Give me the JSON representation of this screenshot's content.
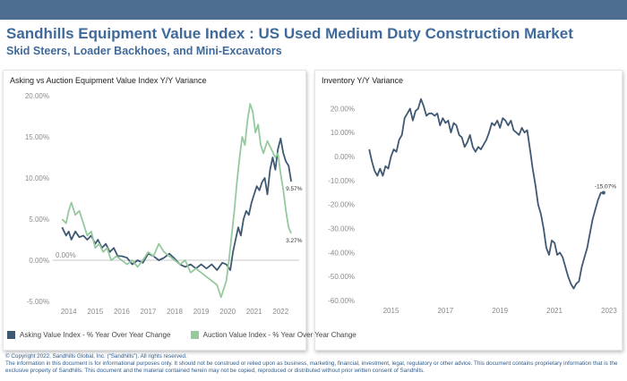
{
  "header": {
    "title": "Sandhills Equipment Value Index : US Used Medium Duty Construction Market",
    "subtitle": "Skid Steers, Loader Backhoes, and Mini-Excavators"
  },
  "colors": {
    "banner": "#4d6e91",
    "asking": "#3f5873",
    "auction": "#96c99e",
    "inventory": "#3f5873",
    "title": "#3f6a9b"
  },
  "legend": {
    "asking": "Asking Value Index - % Year Over Year Change",
    "auction": "Auction Value Index - % Year Over Year Change"
  },
  "footer": {
    "line1": "© Copyright 2022, Sandhills Global, Inc. (“Sandhills”). All rights reserved.",
    "line2": "The information in this document is for informational purposes only.  It should not be construed or relied upon as business, marketing, financial, investment, legal, regulatory or other advice. This document contains proprietary information that is the exclusive property of Sandhills. This document and the material contained herein may not be copied, reproduced or distributed without prior written consent of Sandhills."
  },
  "chart_data": [
    {
      "type": "line",
      "title": "Asking vs Auction Equipment Value Index Y/Y Variance",
      "xlim": [
        2013.4,
        2022.7
      ],
      "ylim": [
        -5,
        20
      ],
      "x_ticks": [
        2014,
        2015,
        2016,
        2017,
        2018,
        2019,
        2020,
        2021,
        2022
      ],
      "y_ticks": [
        "20.00%",
        "15.00%",
        "10.00%",
        "5.00%",
        "0.00%",
        "-5.00%"
      ],
      "y_tick_values": [
        20,
        15,
        10,
        5,
        0,
        -5
      ],
      "zero_label": "0.00%",
      "series": [
        {
          "key": "asking",
          "x": [
            2013.75,
            2013.9,
            2014.0,
            2014.1,
            2014.25,
            2014.4,
            2014.55,
            2014.7,
            2014.85,
            2015.0,
            2015.1,
            2015.25,
            2015.4,
            2015.55,
            2015.7,
            2015.85,
            2016.0,
            2016.2,
            2016.4,
            2016.6,
            2016.8,
            2017.0,
            2017.2,
            2017.4,
            2017.6,
            2017.8,
            2018.0,
            2018.2,
            2018.4,
            2018.6,
            2018.8,
            2019.0,
            2019.2,
            2019.4,
            2019.6,
            2019.8,
            2019.95,
            2020.1,
            2020.2,
            2020.3,
            2020.4,
            2020.5,
            2020.6,
            2020.7,
            2020.8,
            2020.9,
            2021.0,
            2021.1,
            2021.2,
            2021.3,
            2021.4,
            2021.5,
            2021.6,
            2021.7,
            2021.8,
            2021.9,
            2022.0,
            2022.1,
            2022.2,
            2022.3,
            2022.4
          ],
          "y": [
            4.0,
            3.0,
            3.5,
            2.5,
            3.5,
            2.8,
            3.0,
            2.5,
            3.0,
            2.0,
            2.5,
            1.5,
            2.0,
            1.0,
            1.5,
            0.5,
            0.5,
            0.3,
            -0.5,
            0.0,
            -0.3,
            0.8,
            0.5,
            0.0,
            0.3,
            0.8,
            0.2,
            -0.5,
            -0.8,
            -0.5,
            -1.0,
            -0.5,
            -1.0,
            -0.5,
            -1.2,
            -0.3,
            -0.5,
            -1.2,
            1.0,
            2.5,
            4.0,
            3.0,
            5.0,
            6.0,
            5.5,
            7.0,
            8.0,
            9.0,
            8.5,
            9.5,
            10.0,
            8.0,
            11.0,
            12.5,
            11.0,
            13.5,
            14.8,
            13.0,
            12.0,
            11.5,
            9.57
          ]
        },
        {
          "key": "auction",
          "x": [
            2013.75,
            2013.9,
            2014.0,
            2014.1,
            2014.25,
            2014.4,
            2014.55,
            2014.7,
            2014.85,
            2015.0,
            2015.15,
            2015.3,
            2015.45,
            2015.6,
            2015.8,
            2016.0,
            2016.2,
            2016.4,
            2016.6,
            2016.8,
            2017.0,
            2017.2,
            2017.4,
            2017.6,
            2017.8,
            2018.0,
            2018.2,
            2018.4,
            2018.6,
            2018.8,
            2019.0,
            2019.2,
            2019.4,
            2019.6,
            2019.75,
            2019.85,
            2019.95,
            2020.05,
            2020.15,
            2020.25,
            2020.35,
            2020.45,
            2020.55,
            2020.65,
            2020.75,
            2020.85,
            2020.95,
            2021.05,
            2021.15,
            2021.25,
            2021.35,
            2021.5,
            2021.65,
            2021.8,
            2021.9,
            2022.0,
            2022.1,
            2022.2,
            2022.3,
            2022.4
          ],
          "y": [
            5.0,
            4.5,
            6.0,
            7.0,
            5.5,
            6.0,
            4.5,
            3.0,
            3.5,
            1.5,
            2.0,
            1.0,
            1.5,
            0.0,
            0.5,
            0.0,
            -0.5,
            0.0,
            -0.8,
            0.0,
            1.0,
            0.5,
            2.0,
            1.0,
            0.5,
            0.0,
            -0.5,
            0.0,
            -1.5,
            -1.0,
            -1.5,
            -2.0,
            -2.5,
            -3.0,
            -4.5,
            -3.5,
            -2.5,
            0.0,
            3.0,
            6.0,
            9.5,
            12.5,
            15.0,
            14.0,
            17.0,
            19.0,
            18.0,
            15.5,
            16.5,
            14.0,
            13.0,
            14.5,
            13.5,
            12.5,
            13.0,
            10.5,
            8.5,
            6.0,
            4.0,
            3.27
          ]
        }
      ],
      "end_labels": [
        "9.57%",
        "3.27%"
      ]
    },
    {
      "type": "line",
      "title": "Inventory Y/Y Variance",
      "xlim": [
        2013.8,
        2023.2
      ],
      "ylim": [
        -60,
        25
      ],
      "x_ticks": [
        2015,
        2017,
        2019,
        2021,
        2023
      ],
      "y_ticks": [
        "20.00%",
        "10.00%",
        "0.00%",
        "-10.00%",
        "-20.00%",
        "-30.00%",
        "-40.00%",
        "-50.00%",
        "-60.00%"
      ],
      "y_tick_values": [
        20,
        10,
        0,
        -10,
        -20,
        -30,
        -40,
        -50,
        -60
      ],
      "series": [
        {
          "key": "inventory",
          "x": [
            2014.2,
            2014.3,
            2014.4,
            2014.5,
            2014.6,
            2014.7,
            2014.8,
            2014.9,
            2015.0,
            2015.1,
            2015.2,
            2015.3,
            2015.4,
            2015.5,
            2015.6,
            2015.7,
            2015.8,
            2015.9,
            2016.0,
            2016.1,
            2016.2,
            2016.3,
            2016.4,
            2016.5,
            2016.6,
            2016.7,
            2016.8,
            2016.9,
            2017.0,
            2017.1,
            2017.2,
            2017.3,
            2017.4,
            2017.5,
            2017.6,
            2017.7,
            2017.8,
            2017.9,
            2018.0,
            2018.1,
            2018.2,
            2018.3,
            2018.4,
            2018.5,
            2018.6,
            2018.7,
            2018.8,
            2018.9,
            2019.0,
            2019.1,
            2019.2,
            2019.3,
            2019.4,
            2019.5,
            2019.6,
            2019.7,
            2019.8,
            2019.9,
            2020.0,
            2020.1,
            2020.2,
            2020.3,
            2020.4,
            2020.5,
            2020.6,
            2020.7,
            2020.8,
            2020.9,
            2021.0,
            2021.1,
            2021.2,
            2021.3,
            2021.4,
            2021.5,
            2021.6,
            2021.7,
            2021.8,
            2021.9,
            2022.0,
            2022.1,
            2022.2,
            2022.3,
            2022.4,
            2022.5,
            2022.6,
            2022.7,
            2022.8
          ],
          "y": [
            3,
            -2,
            -6,
            -8,
            -5,
            -8,
            -4,
            -5,
            0,
            3,
            2,
            7,
            9,
            16,
            18,
            20,
            15,
            19,
            20,
            24,
            21,
            17,
            18,
            18,
            17,
            18,
            13,
            16,
            14,
            15,
            10,
            14,
            13,
            9,
            8,
            4,
            6,
            9,
            4,
            2,
            4,
            3,
            5,
            7,
            10,
            14,
            13,
            15,
            12,
            16,
            15,
            13,
            15,
            11,
            10,
            9,
            12,
            10,
            11,
            3,
            -5,
            -12,
            -20,
            -24,
            -30,
            -38,
            -41,
            -35,
            -36,
            -41,
            -40,
            -42,
            -46,
            -50,
            -53,
            -55,
            -53,
            -52,
            -46,
            -42,
            -38,
            -32,
            -26,
            -22,
            -18,
            -15.07,
            -15.07
          ],
          "end_label": "-15.07%"
        }
      ]
    }
  ]
}
